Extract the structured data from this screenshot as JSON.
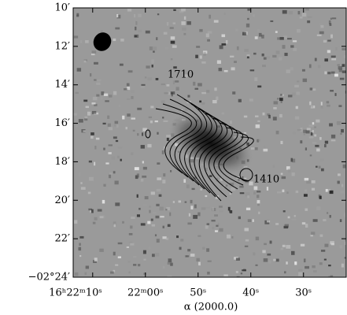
{
  "chart_data": {
    "type": "image",
    "xlabel": "α (2000.0)",
    "xlim": [
      73.7,
      21.9
    ],
    "xticks": [
      {
        "value": 70,
        "label": "16ʰ22ᵐ10ˢ"
      },
      {
        "value": 60,
        "label": "22ᵐ00ˢ"
      },
      {
        "value": 50,
        "label": "50ˢ"
      },
      {
        "value": 40,
        "label": "40ˢ"
      },
      {
        "value": 30,
        "label": "30ˢ"
      }
    ],
    "ylim": [
      24,
      10
    ],
    "yticks": [
      {
        "value": 10,
        "label": "10′"
      },
      {
        "value": 12,
        "label": "12′"
      },
      {
        "value": 14,
        "label": "14′"
      },
      {
        "value": 16,
        "label": "16′"
      },
      {
        "value": 18,
        "label": "18′"
      },
      {
        "value": 20,
        "label": "20′"
      },
      {
        "value": 22,
        "label": "22′"
      },
      {
        "value": 24,
        "label": "−02°24′"
      }
    ],
    "annotations": [
      "1710",
      "1410"
    ]
  }
}
